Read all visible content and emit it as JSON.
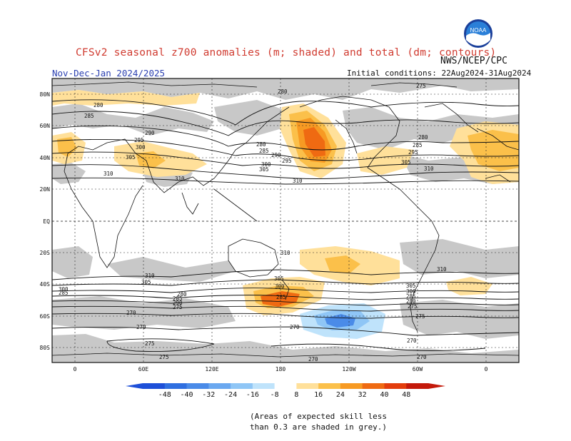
{
  "header": {
    "title": "CFSv2 seasonal z700 anomalies (m; shaded) and total (dm; contours)",
    "season": "Nov-Dec-Jan 2024/2025",
    "agency": "NWS/NCEP/CPC",
    "init_conditions": "Initial conditions: 22Aug2024-31Aug2024",
    "logo_text": "NOAA"
  },
  "axes": {
    "lat_labels": [
      "80N",
      "60N",
      "40N",
      "20N",
      "EQ",
      "20S",
      "40S",
      "60S",
      "80S"
    ],
    "lon_labels": [
      "0",
      "60E",
      "120E",
      "180",
      "120W",
      "60W",
      "0"
    ]
  },
  "contour_labels": [
    "280",
    "285",
    "290",
    "295",
    "300",
    "305",
    "310",
    "275",
    "270"
  ],
  "colorbar": {
    "tick_labels": [
      "-48",
      "-40",
      "-32",
      "-24",
      "-16",
      "-8",
      "8",
      "16",
      "24",
      "32",
      "40",
      "48"
    ],
    "colors": [
      "#1d4fd8",
      "#2f6fe0",
      "#4a8be8",
      "#6aa8f0",
      "#8fc6f6",
      "#bfe3fb",
      "#ffffff",
      "#ffe09a",
      "#fbc04a",
      "#f79a23",
      "#ef6a12",
      "#e33d0c",
      "#c4190a"
    ]
  },
  "footnote": {
    "line1": "(Areas of expected skill less",
    "line2": "than 0.3 are shaded in grey.)"
  }
}
